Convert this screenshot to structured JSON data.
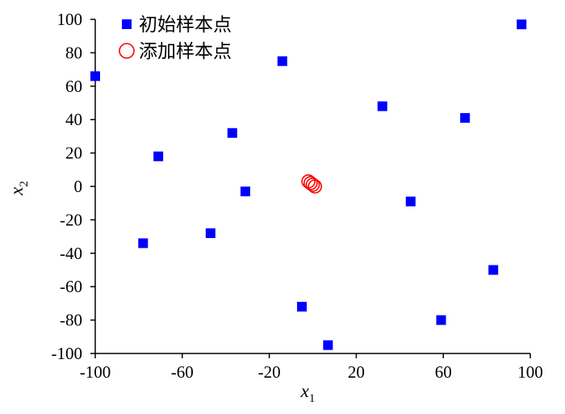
{
  "chart_data": {
    "type": "scatter",
    "title": "",
    "xlabel": "x",
    "xlabel_sub": "1",
    "ylabel": "x",
    "ylabel_sub": "2",
    "xlim": [
      -100,
      100
    ],
    "ylim": [
      -100,
      100
    ],
    "xticks": [
      "-100",
      "-60",
      "-20",
      "20",
      "60",
      "100"
    ],
    "xtick_values": [
      -100,
      -60,
      -20,
      20,
      60,
      100
    ],
    "yticks": [
      "100",
      "80",
      "60",
      "40",
      "20",
      "0",
      "-20",
      "-40",
      "-60",
      "-80",
      "-100"
    ],
    "ytick_values": [
      100,
      80,
      60,
      40,
      20,
      0,
      -20,
      -40,
      -60,
      -80,
      -100
    ],
    "grid": false,
    "legend_position": "top-left",
    "series": [
      {
        "name": "初始样本点",
        "marker": "square",
        "color": "#0000ff",
        "points": [
          {
            "x": -100,
            "y": 66
          },
          {
            "x": -14,
            "y": 75
          },
          {
            "x": 96,
            "y": 97
          },
          {
            "x": 32,
            "y": 48
          },
          {
            "x": 70,
            "y": 41
          },
          {
            "x": -37,
            "y": 32
          },
          {
            "x": -71,
            "y": 18
          },
          {
            "x": -31,
            "y": -3
          },
          {
            "x": 45,
            "y": -9
          },
          {
            "x": -78,
            "y": -34
          },
          {
            "x": -47,
            "y": -28
          },
          {
            "x": 83,
            "y": -50
          },
          {
            "x": -5,
            "y": -72
          },
          {
            "x": 59,
            "y": -80
          },
          {
            "x": 7,
            "y": -95
          }
        ]
      },
      {
        "name": "添加样本点",
        "marker": "circle",
        "color": "#ff0000",
        "points": [
          {
            "x": -2,
            "y": 3
          },
          {
            "x": -1,
            "y": 2
          },
          {
            "x": 0,
            "y": 1
          },
          {
            "x": 1,
            "y": 0
          }
        ]
      }
    ]
  }
}
